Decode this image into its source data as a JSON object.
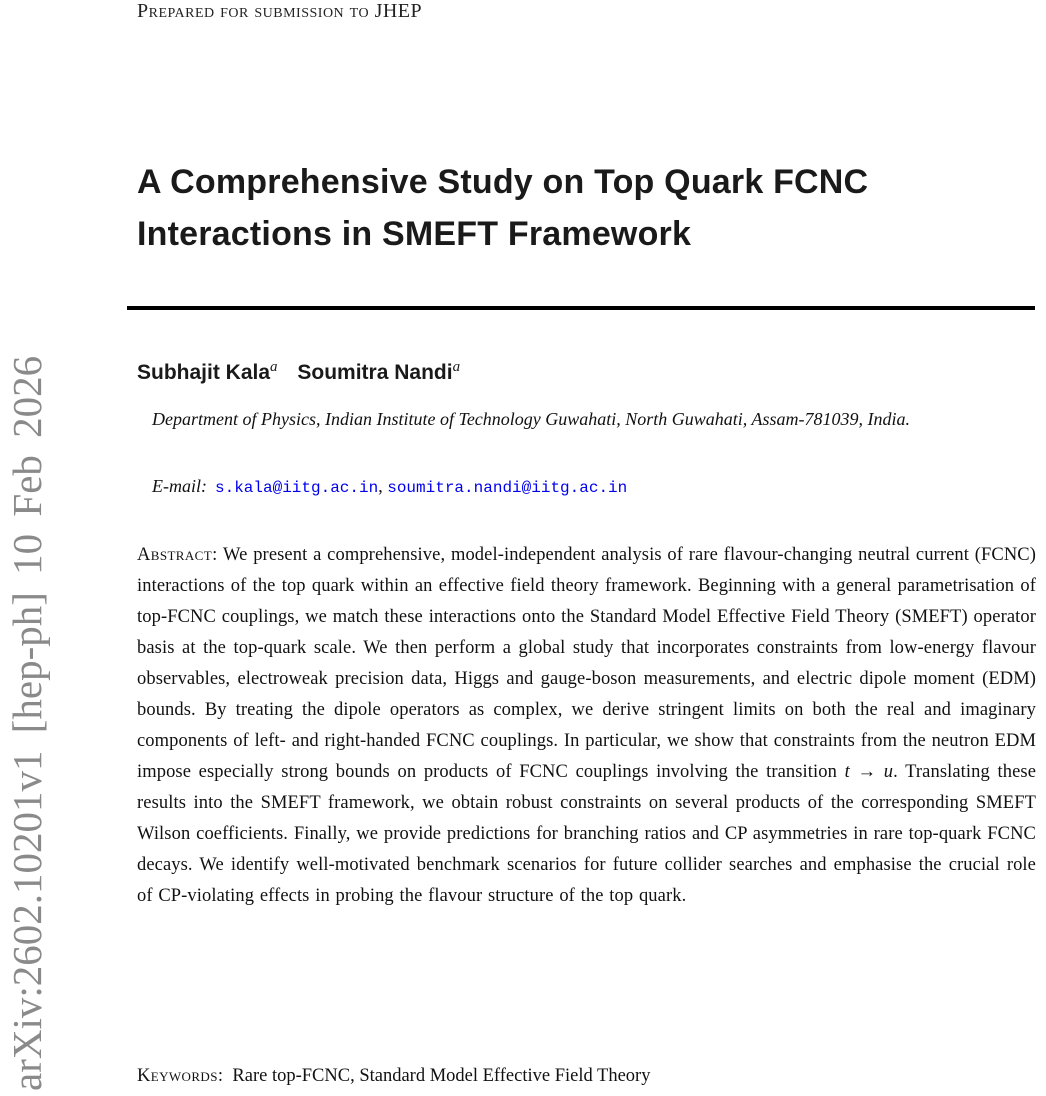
{
  "colors": {
    "link_blue": "#0000EE",
    "watermark_gray": "#8a8a8a",
    "text_black": "#111111"
  },
  "watermark": {
    "text": "arXiv:2602.10201v1 [hep-ph] 10 Feb 2026"
  },
  "header": {
    "submission_note": "Prepared for submission to JHEP"
  },
  "title": {
    "text": "A Comprehensive Study on Top Quark FCNC Interactions in SMEFT Framework"
  },
  "authors": [
    {
      "name": "Subhajit Kala",
      "affiliation_mark": "a"
    },
    {
      "name": "Soumitra Nandi",
      "affiliation_mark": "a"
    }
  ],
  "affiliation": {
    "text": "Department of Physics, Indian Institute of Technology Guwahati, North Guwahati, Assam-781039, India."
  },
  "emails": {
    "label": "E-mail:",
    "addresses": [
      "s.kala@iitg.ac.in",
      "soumitra.nandi@iitg.ac.in"
    ],
    "separator": ", "
  },
  "abstract": {
    "label": "Abstract:",
    "text_before": " We present a comprehensive, model-independent analysis of rare flavour-changing neutral current (FCNC) interactions of the top quark within an effective field theory framework. Beginning with a general parametrisation of top-FCNC couplings, we match these interactions onto the Standard Model Effective Field Theory (SMEFT) operator basis at the top-quark scale. We then perform a global study that incorporates constraints from low-energy flavour observables, electroweak precision data, Higgs and gauge-boson measurements, and electric dipole moment (EDM) bounds. By treating the dipole operators as complex, we derive stringent limits on both the real and imaginary components of left- and right-handed FCNC couplings. In particular, we show that constraints from the neutron EDM impose especially strong bounds on products of FCNC couplings involving the transition ",
    "math": "t → u",
    "text_after": ". Translating these results into the SMEFT framework, we obtain robust constraints on several products of the corresponding SMEFT Wilson coefficients. Finally, we provide predictions for branching ratios and CP asymmetries in rare top-quark FCNC decays. We identify well-motivated benchmark scenarios for future collider searches and emphasise the crucial role of CP-violating effects in probing the flavour structure of the top quark."
  },
  "keywords": {
    "label": "Keywords:",
    "text": "Rare top-FCNC, Standard Model Effective Field Theory"
  }
}
